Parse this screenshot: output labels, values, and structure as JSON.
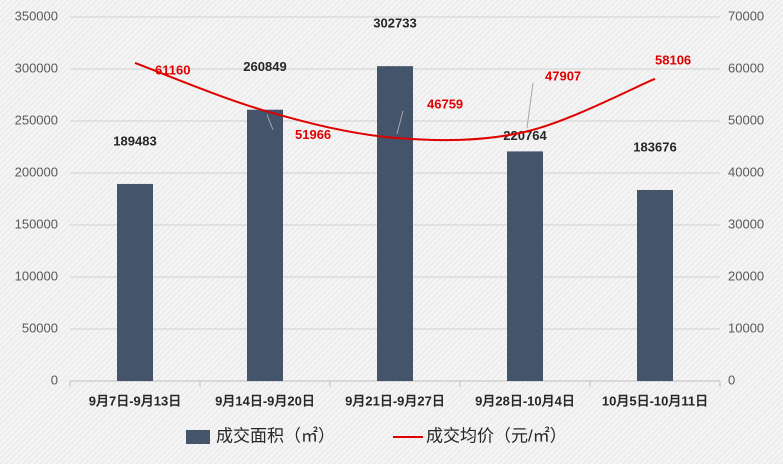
{
  "chart_data": {
    "type": "bar",
    "categories": [
      "9月7日-9月13日",
      "9月14日-9月20日",
      "9月21日-9月27日",
      "9月28日-10月4日",
      "10月5日-10月11日"
    ],
    "series": [
      {
        "name": "成交面积（㎡）",
        "color": "#44546a",
        "values": [
          189483,
          260849,
          302733,
          220764,
          183676
        ]
      },
      {
        "name": "成交均价（元/㎡）",
        "type": "line",
        "axis": "y2",
        "color": "#e00000",
        "values": [
          61160,
          51966,
          46759,
          47907,
          58106
        ]
      }
    ],
    "ylim": [
      0,
      350000
    ],
    "yticks": [
      0,
      50000,
      100000,
      150000,
      200000,
      250000,
      300000,
      350000
    ],
    "y2lim": [
      0,
      70000
    ],
    "y2ticks": [
      0,
      10000,
      20000,
      30000,
      40000,
      50000,
      60000,
      70000
    ],
    "grid": true,
    "legend": "bottom"
  }
}
